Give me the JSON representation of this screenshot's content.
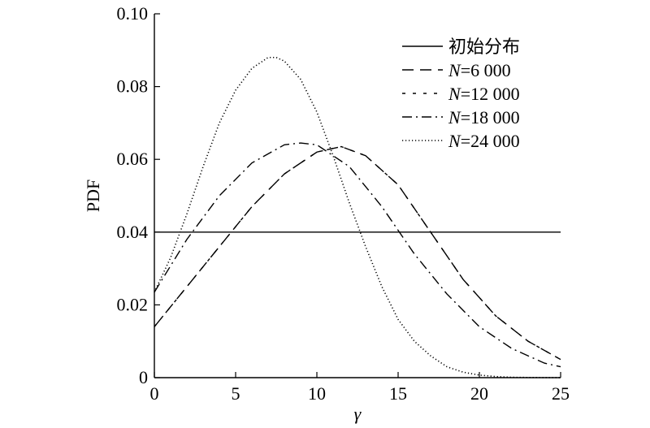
{
  "chart_data": {
    "type": "line",
    "xlabel": "γ",
    "ylabel": "PDF",
    "xlim": [
      0,
      25
    ],
    "ylim": [
      0,
      0.1
    ],
    "xticks": [
      "0",
      "5",
      "10",
      "15",
      "20",
      "25"
    ],
    "yticks": [
      "0",
      "0.02",
      "0.04",
      "0.06",
      "0.08",
      "0.10"
    ],
    "grid": false,
    "legend_position": "top-right",
    "series": [
      {
        "name": "初始分布",
        "name_prefix": "",
        "name_suffix": "初始分布",
        "style": "solid",
        "x": [
          0,
          5,
          10,
          15,
          20,
          25
        ],
        "y": [
          0.04,
          0.04,
          0.04,
          0.04,
          0.04,
          0.04
        ]
      },
      {
        "name": "N=6 000",
        "name_prefix": "N",
        "name_suffix": "=6 000",
        "style": "dashed",
        "x": [
          0,
          2,
          4,
          6,
          8,
          10,
          11.5,
          13,
          15,
          17,
          19,
          21,
          23,
          25
        ],
        "y": [
          0.014,
          0.025,
          0.036,
          0.047,
          0.056,
          0.062,
          0.0635,
          0.061,
          0.053,
          0.04,
          0.027,
          0.017,
          0.01,
          0.005
        ]
      },
      {
        "name": "N=12 000",
        "name_prefix": "N",
        "name_suffix": "=12 000",
        "style": "dashed-short",
        "x": [
          0,
          2,
          4,
          6,
          8,
          10,
          11.5,
          13,
          15,
          17,
          19,
          21,
          23,
          25
        ],
        "y": [
          0.014,
          0.025,
          0.036,
          0.047,
          0.056,
          0.062,
          0.0635,
          0.061,
          0.053,
          0.04,
          0.027,
          0.017,
          0.01,
          0.005
        ]
      },
      {
        "name": "N=18 000",
        "name_prefix": "N",
        "name_suffix": "=18 000",
        "style": "dashdot",
        "x": [
          0,
          2,
          4,
          6,
          8,
          9,
          10,
          12,
          14,
          16,
          18,
          20,
          22,
          24,
          25
        ],
        "y": [
          0.0235,
          0.038,
          0.05,
          0.059,
          0.064,
          0.0645,
          0.064,
          0.058,
          0.047,
          0.034,
          0.023,
          0.014,
          0.008,
          0.004,
          0.003
        ]
      },
      {
        "name": "N=24 000",
        "name_prefix": "N",
        "name_suffix": "=24 000",
        "style": "dotted",
        "x": [
          0,
          1,
          2,
          3,
          4,
          5,
          6,
          7,
          7.5,
          8,
          9,
          10,
          11,
          12,
          13,
          14,
          15,
          16,
          17,
          18,
          19,
          20,
          21,
          22,
          23,
          24,
          25
        ],
        "y": [
          0.0235,
          0.033,
          0.045,
          0.058,
          0.07,
          0.079,
          0.085,
          0.088,
          0.088,
          0.087,
          0.082,
          0.073,
          0.061,
          0.048,
          0.036,
          0.025,
          0.016,
          0.01,
          0.006,
          0.003,
          0.0015,
          0.0007,
          0.0003,
          0.0001,
          5e-05,
          2e-05,
          1e-05
        ]
      }
    ]
  },
  "colors": {
    "line": "#000000",
    "axis": "#000000",
    "background": "#ffffff"
  }
}
